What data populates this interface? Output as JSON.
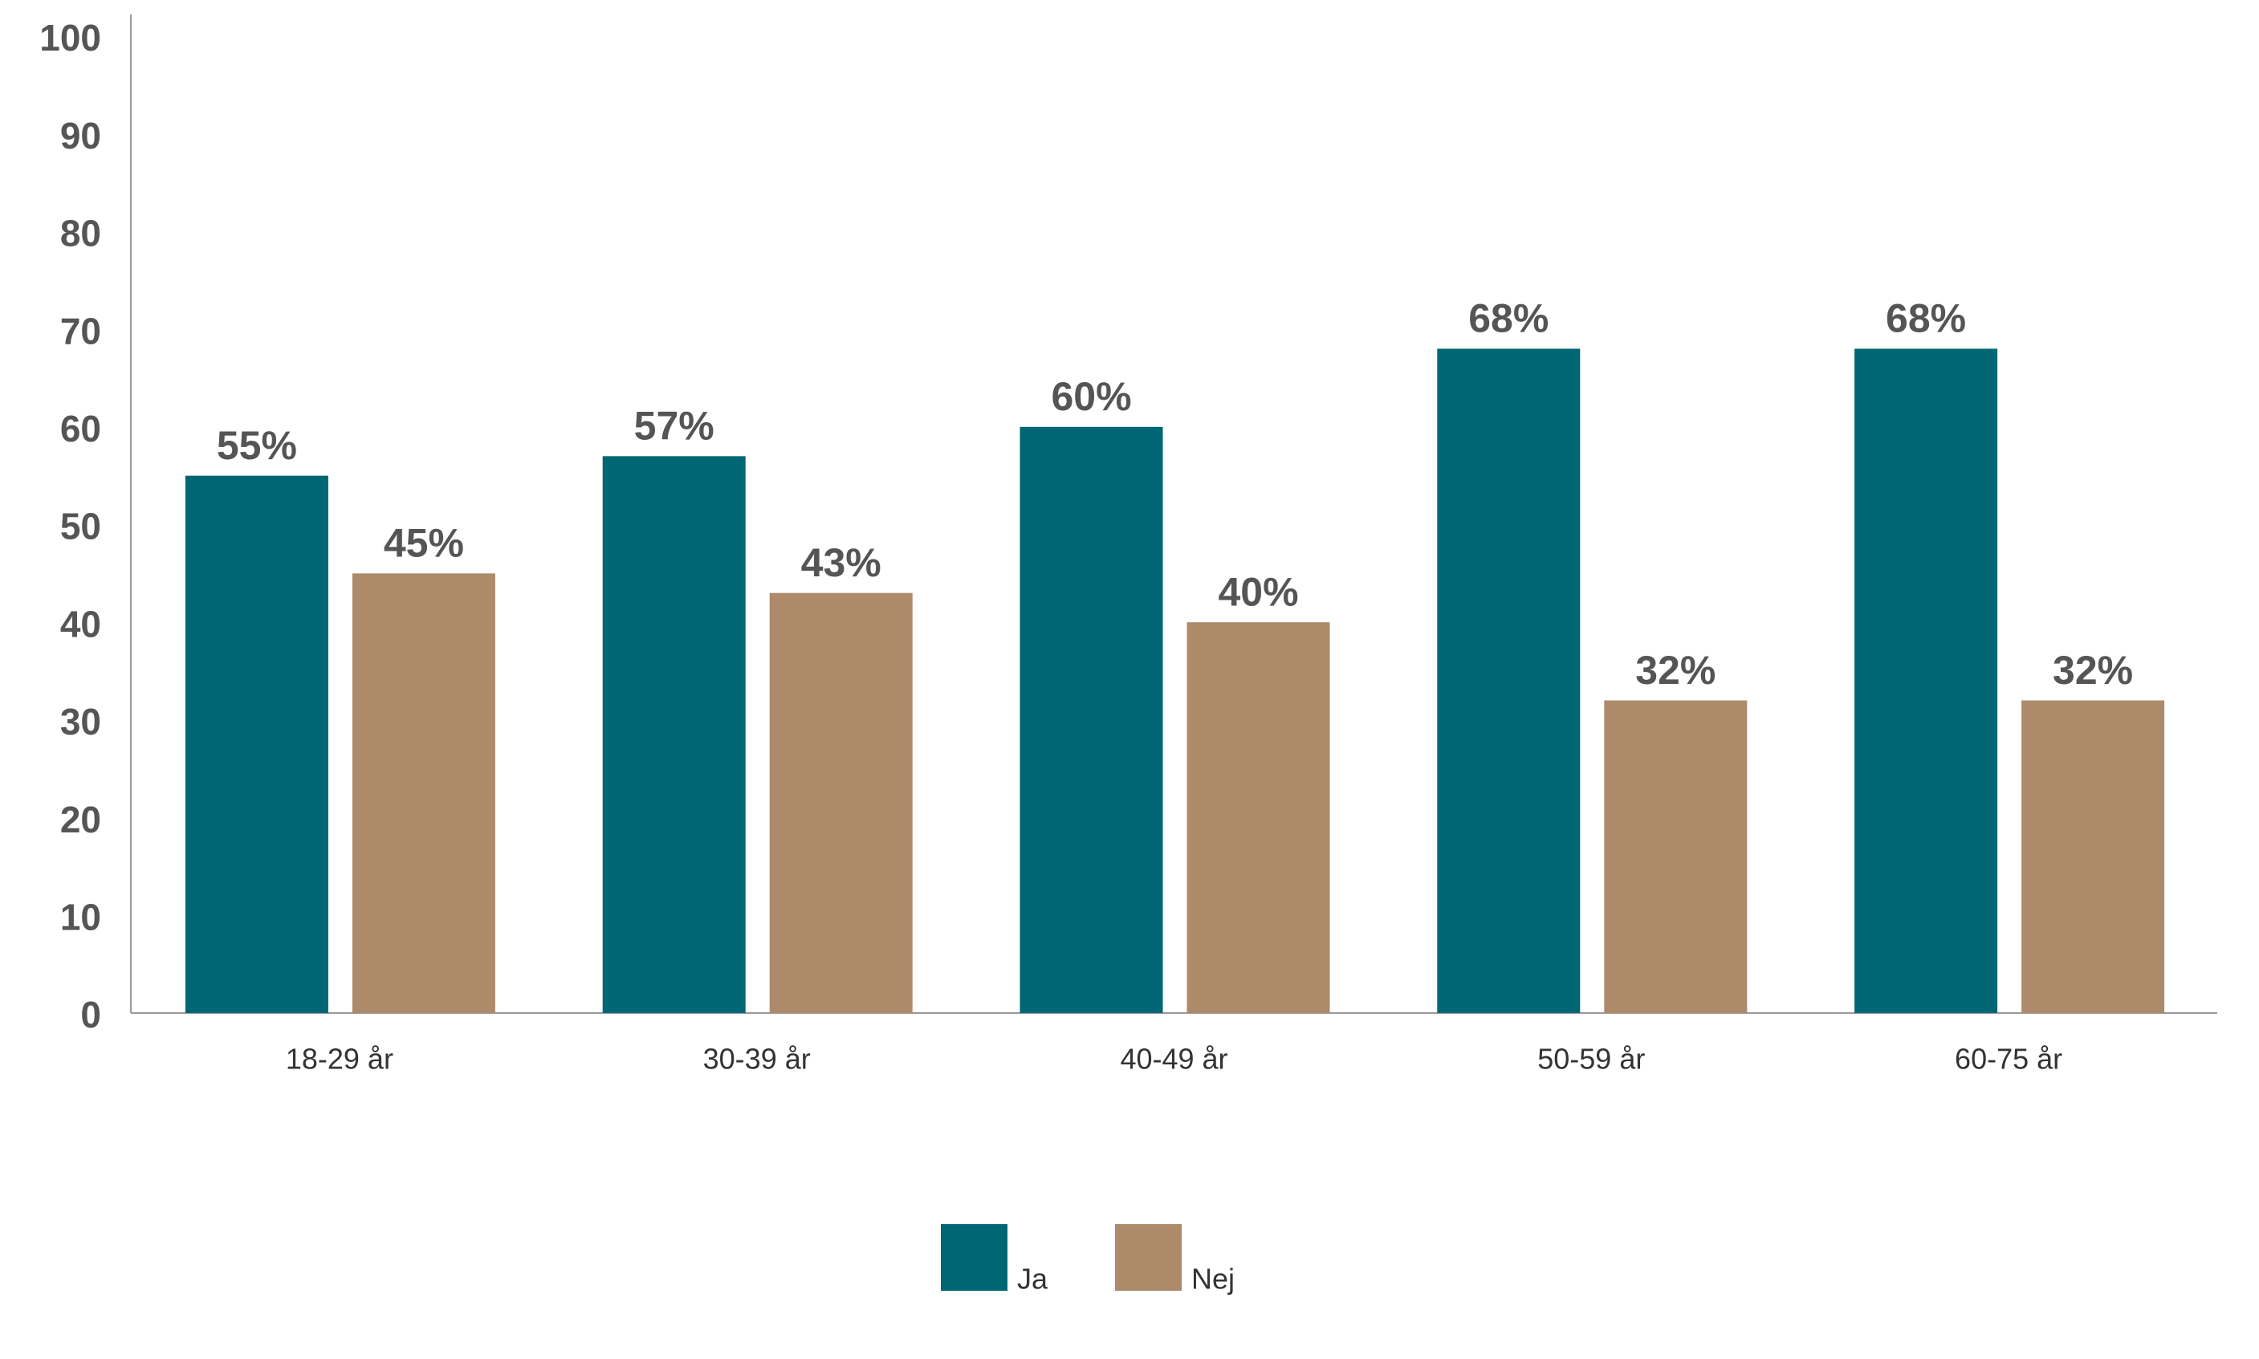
{
  "chart_data": {
    "type": "bar",
    "categories": [
      "18-29 år",
      "30-39 år",
      "40-49 år",
      "50-59 år",
      "60-75 år"
    ],
    "series": [
      {
        "name": "Ja",
        "color": "#006673",
        "values": [
          55,
          57,
          60,
          68,
          68
        ],
        "value_labels": [
          "55%",
          "57%",
          "60%",
          "68%",
          "68%"
        ]
      },
      {
        "name": "Nej",
        "color": "#ad8a6a",
        "values": [
          45,
          43,
          40,
          32,
          32
        ],
        "value_labels": [
          "45%",
          "43%",
          "40%",
          "32%",
          "32%"
        ]
      }
    ],
    "ylim": [
      0,
      100
    ],
    "yticks": [
      0,
      10,
      20,
      30,
      40,
      50,
      60,
      70,
      80,
      90,
      100
    ],
    "grid": false
  }
}
